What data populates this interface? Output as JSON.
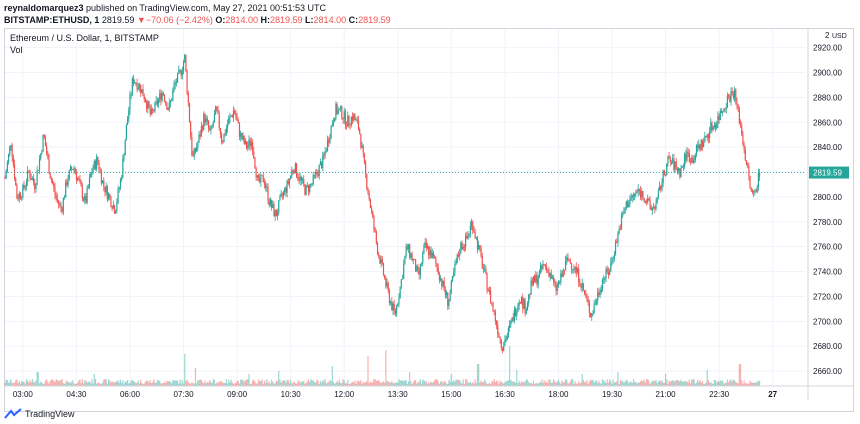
{
  "header": {
    "publisher": "reynaldomarquez3",
    "published_text": "published on TradingView.com, May 27, 2021 00:51:53 UTC",
    "symbol_line": "BITSTAMP:ETHUSD, 1",
    "last_price": "2819.59",
    "change_arrow": "▼",
    "change": "−70.06 (−2.42%)",
    "o_label": "O:",
    "o_value": "2814.00",
    "h_label": "H:",
    "h_value": "2819.59",
    "l_label": "L:",
    "l_value": "2814.00",
    "c_label": "C:",
    "c_value": "2819.59"
  },
  "legend": {
    "title": "Ethereum / U.S. Dollar, 1, BITSTAMP",
    "vol_label": "Vol"
  },
  "footer": {
    "brand": "TradingView"
  },
  "colors": {
    "up": "#26a69a",
    "down": "#ef5350",
    "price_line": "#26a69a",
    "grid": "#f0f3fa"
  },
  "chart_data": {
    "type": "candlestick",
    "title": "Ethereum / U.S. Dollar, 1, BITSTAMP",
    "currency_label": "USD",
    "y_scale_top_label": "2",
    "yticks": [
      2660,
      2680,
      2700,
      2720,
      2740,
      2760,
      2780,
      2800,
      2820,
      2840,
      2860,
      2880,
      2900,
      2920
    ],
    "ytick_labels": [
      "2660.00",
      "2680.00",
      "2700.00",
      "2720.00",
      "2740.00",
      "2760.00",
      "2780.00",
      "2800.00",
      "2820.00",
      "2840.00",
      "2860.00",
      "2880.00",
      "2900.00",
      "2920.00"
    ],
    "ylim": [
      2648,
      2935
    ],
    "xticks": [
      "03:00",
      "04:30",
      "06:00",
      "07:30",
      "09:00",
      "10:30",
      "12:00",
      "13:30",
      "15:00",
      "16:30",
      "18:00",
      "19:30",
      "21:00",
      "22:30",
      "27"
    ],
    "xlim_minutes": [
      150,
      1496
    ],
    "xtick_minutes": [
      180,
      270,
      360,
      450,
      540,
      630,
      720,
      810,
      900,
      990,
      1080,
      1170,
      1260,
      1350,
      1440
    ],
    "last_price": 2819.59,
    "last_price_label": "2819.59",
    "price_path": [
      [
        150,
        2815
      ],
      [
        160,
        2845
      ],
      [
        170,
        2800
      ],
      [
        180,
        2805
      ],
      [
        190,
        2820
      ],
      [
        200,
        2810
      ],
      [
        210,
        2835
      ],
      [
        215,
        2850
      ],
      [
        225,
        2820
      ],
      [
        235,
        2800
      ],
      [
        245,
        2790
      ],
      [
        255,
        2815
      ],
      [
        265,
        2825
      ],
      [
        275,
        2810
      ],
      [
        285,
        2795
      ],
      [
        295,
        2820
      ],
      [
        305,
        2830
      ],
      [
        315,
        2810
      ],
      [
        325,
        2800
      ],
      [
        335,
        2790
      ],
      [
        345,
        2815
      ],
      [
        355,
        2860
      ],
      [
        365,
        2895
      ],
      [
        375,
        2890
      ],
      [
        385,
        2880
      ],
      [
        395,
        2865
      ],
      [
        405,
        2875
      ],
      [
        415,
        2885
      ],
      [
        425,
        2870
      ],
      [
        435,
        2890
      ],
      [
        445,
        2900
      ],
      [
        452,
        2912
      ],
      [
        458,
        2875
      ],
      [
        465,
        2830
      ],
      [
        475,
        2845
      ],
      [
        485,
        2865
      ],
      [
        495,
        2850
      ],
      [
        505,
        2870
      ],
      [
        515,
        2845
      ],
      [
        525,
        2860
      ],
      [
        535,
        2870
      ],
      [
        545,
        2850
      ],
      [
        555,
        2840
      ],
      [
        565,
        2845
      ],
      [
        575,
        2810
      ],
      [
        585,
        2815
      ],
      [
        595,
        2795
      ],
      [
        605,
        2785
      ],
      [
        615,
        2800
      ],
      [
        625,
        2810
      ],
      [
        635,
        2825
      ],
      [
        645,
        2815
      ],
      [
        655,
        2805
      ],
      [
        665,
        2810
      ],
      [
        675,
        2820
      ],
      [
        685,
        2830
      ],
      [
        695,
        2850
      ],
      [
        705,
        2870
      ],
      [
        715,
        2868
      ],
      [
        725,
        2860
      ],
      [
        735,
        2865
      ],
      [
        745,
        2855
      ],
      [
        755,
        2820
      ],
      [
        765,
        2790
      ],
      [
        775,
        2760
      ],
      [
        785,
        2740
      ],
      [
        795,
        2720
      ],
      [
        805,
        2705
      ],
      [
        815,
        2730
      ],
      [
        825,
        2760
      ],
      [
        835,
        2750
      ],
      [
        845,
        2735
      ],
      [
        855,
        2760
      ],
      [
        865,
        2755
      ],
      [
        875,
        2745
      ],
      [
        885,
        2730
      ],
      [
        895,
        2715
      ],
      [
        905,
        2740
      ],
      [
        915,
        2760
      ],
      [
        925,
        2765
      ],
      [
        935,
        2780
      ],
      [
        945,
        2760
      ],
      [
        955,
        2740
      ],
      [
        965,
        2720
      ],
      [
        975,
        2700
      ],
      [
        985,
        2680
      ],
      [
        995,
        2690
      ],
      [
        1005,
        2705
      ],
      [
        1015,
        2720
      ],
      [
        1025,
        2710
      ],
      [
        1035,
        2730
      ],
      [
        1045,
        2735
      ],
      [
        1055,
        2745
      ],
      [
        1065,
        2740
      ],
      [
        1075,
        2725
      ],
      [
        1085,
        2735
      ],
      [
        1095,
        2750
      ],
      [
        1105,
        2745
      ],
      [
        1115,
        2735
      ],
      [
        1125,
        2720
      ],
      [
        1135,
        2705
      ],
      [
        1145,
        2720
      ],
      [
        1155,
        2735
      ],
      [
        1165,
        2740
      ],
      [
        1175,
        2760
      ],
      [
        1185,
        2780
      ],
      [
        1195,
        2795
      ],
      [
        1205,
        2800
      ],
      [
        1215,
        2805
      ],
      [
        1225,
        2800
      ],
      [
        1235,
        2790
      ],
      [
        1245,
        2795
      ],
      [
        1255,
        2815
      ],
      [
        1265,
        2830
      ],
      [
        1275,
        2825
      ],
      [
        1285,
        2820
      ],
      [
        1295,
        2835
      ],
      [
        1305,
        2830
      ],
      [
        1315,
        2840
      ],
      [
        1325,
        2845
      ],
      [
        1335,
        2855
      ],
      [
        1345,
        2860
      ],
      [
        1355,
        2870
      ],
      [
        1365,
        2880
      ],
      [
        1375,
        2885
      ],
      [
        1385,
        2860
      ],
      [
        1395,
        2830
      ],
      [
        1405,
        2800
      ],
      [
        1410,
        2805
      ],
      [
        1418,
        2819.59
      ]
    ],
    "volume_spikes": [
      [
        205,
        14
      ],
      [
        300,
        12
      ],
      [
        452,
        32
      ],
      [
        470,
        18
      ],
      [
        560,
        12
      ],
      [
        610,
        15
      ],
      [
        700,
        20
      ],
      [
        760,
        30
      ],
      [
        790,
        36
      ],
      [
        830,
        14
      ],
      [
        900,
        12
      ],
      [
        945,
        22
      ],
      [
        998,
        40
      ],
      [
        1010,
        16
      ],
      [
        1120,
        12
      ],
      [
        1180,
        14
      ],
      [
        1260,
        12
      ],
      [
        1330,
        16
      ],
      [
        1385,
        22
      ]
    ]
  }
}
